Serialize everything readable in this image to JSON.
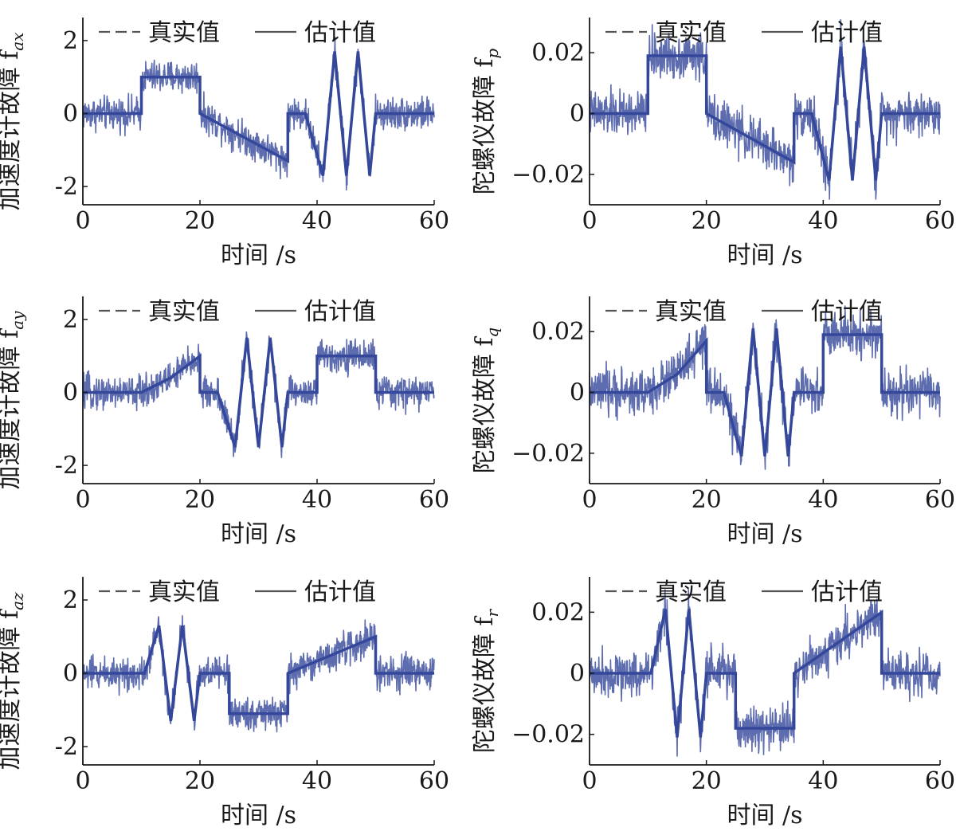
{
  "figure": {
    "background": "#ffffff",
    "axis_color": "#1a1a1a"
  },
  "chart_data": [
    {
      "id": "fax",
      "type": "line",
      "xlabel": "时间 /s",
      "ylabel": "加速度计故障 f",
      "ylabel_sub": "ax",
      "xlim": [
        0,
        60
      ],
      "ylim": [
        -2.5,
        2.5
      ],
      "xticks": [
        "0",
        "20",
        "40",
        "60"
      ],
      "yticks": [
        "-2",
        "0",
        "2"
      ],
      "noise_amplitude": 0.3,
      "series": [
        {
          "name": "真实值",
          "style": "dashed",
          "color": "#e8384f",
          "x": [
            0,
            10,
            10,
            20,
            20,
            35,
            35,
            38,
            41,
            43,
            45,
            47,
            49,
            50,
            50,
            60
          ],
          "y": [
            0,
            0,
            1,
            1,
            0,
            -1.3,
            0,
            0,
            -1.7,
            1.7,
            -1.7,
            1.7,
            -1.7,
            0,
            0,
            0
          ]
        },
        {
          "name": "估计值",
          "style": "solid",
          "color": "#34479a",
          "x": [
            0,
            10,
            10,
            20,
            20,
            35,
            35,
            38,
            41,
            43,
            45,
            47,
            49,
            50,
            50,
            60
          ],
          "y": [
            0,
            0,
            1,
            1,
            0,
            -1.3,
            0,
            0,
            -1.7,
            1.7,
            -1.7,
            1.7,
            -1.7,
            0,
            0,
            0
          ]
        }
      ]
    },
    {
      "id": "fp",
      "type": "line",
      "xlabel": "时间 /s",
      "ylabel": "陀螺仪故障 f",
      "ylabel_sub": "p",
      "xlim": [
        0,
        60
      ],
      "ylim": [
        -0.03,
        0.03
      ],
      "xticks": [
        "0",
        "20",
        "40",
        "60"
      ],
      "yticks": [
        "−0.02",
        "0",
        "0.02"
      ],
      "noise_amplitude": 0.005,
      "series": [
        {
          "name": "真实值",
          "style": "dashed",
          "color": "#e8384f",
          "x": [
            0,
            10,
            10,
            20,
            20,
            35,
            35,
            38,
            41,
            43,
            45,
            47,
            49,
            50,
            50,
            60
          ],
          "y": [
            0,
            0,
            0.019,
            0.019,
            0,
            -0.016,
            0,
            0,
            -0.022,
            0.022,
            -0.022,
            0.022,
            -0.022,
            0,
            0,
            0
          ]
        },
        {
          "name": "估计值",
          "style": "solid",
          "color": "#34479a",
          "x": [
            0,
            10,
            10,
            20,
            20,
            35,
            35,
            38,
            41,
            43,
            45,
            47,
            49,
            50,
            50,
            60
          ],
          "y": [
            0,
            0,
            0.019,
            0.019,
            0,
            -0.016,
            0,
            0,
            -0.022,
            0.022,
            -0.022,
            0.022,
            -0.022,
            0,
            0,
            0
          ]
        }
      ]
    },
    {
      "id": "fay",
      "type": "line",
      "xlabel": "时间 /s",
      "ylabel": "加速度计故障 f",
      "ylabel_sub": "ay",
      "xlim": [
        0,
        60
      ],
      "ylim": [
        -2.5,
        2.5
      ],
      "xticks": [
        "0",
        "20",
        "40",
        "60"
      ],
      "yticks": [
        "-2",
        "0",
        "2"
      ],
      "noise_amplitude": 0.3,
      "series": [
        {
          "name": "真实值",
          "style": "dashed",
          "color": "#e8384f",
          "x": [
            0,
            10,
            15,
            20,
            20,
            23,
            26,
            28,
            30,
            32,
            34,
            35,
            35,
            40,
            40,
            50,
            50,
            60
          ],
          "y": [
            0,
            0,
            0.4,
            1.0,
            0,
            0,
            -1.5,
            1.5,
            -1.5,
            1.5,
            -1.5,
            0,
            0,
            0,
            1.0,
            1.0,
            0,
            0
          ]
        },
        {
          "name": "估计值",
          "style": "solid",
          "color": "#34479a",
          "x": [
            0,
            10,
            15,
            20,
            20,
            23,
            26,
            28,
            30,
            32,
            34,
            35,
            35,
            40,
            40,
            50,
            50,
            60
          ],
          "y": [
            0,
            0,
            0.4,
            1.0,
            0,
            0,
            -1.5,
            1.5,
            -1.5,
            1.5,
            -1.5,
            0,
            0,
            0,
            1.0,
            1.0,
            0,
            0
          ]
        }
      ]
    },
    {
      "id": "fq",
      "type": "line",
      "xlabel": "时间 /s",
      "ylabel": "陀螺仪故障 f",
      "ylabel_sub": "q",
      "xlim": [
        0,
        60
      ],
      "ylim": [
        -0.03,
        0.03
      ],
      "xticks": [
        "0",
        "20",
        "40",
        "60"
      ],
      "yticks": [
        "−0.02",
        "0",
        "0.02"
      ],
      "noise_amplitude": 0.005,
      "series": [
        {
          "name": "真实值",
          "style": "dashed",
          "color": "#e8384f",
          "x": [
            0,
            10,
            15,
            20,
            20,
            23,
            26,
            28,
            30,
            32,
            34,
            35,
            35,
            40,
            40,
            50,
            50,
            60
          ],
          "y": [
            0,
            0,
            0.006,
            0.017,
            0,
            0,
            -0.021,
            0.021,
            -0.021,
            0.021,
            -0.021,
            0,
            0,
            0,
            0.019,
            0.019,
            0,
            0
          ]
        },
        {
          "name": "估计值",
          "style": "solid",
          "color": "#34479a",
          "x": [
            0,
            10,
            15,
            20,
            20,
            23,
            26,
            28,
            30,
            32,
            34,
            35,
            35,
            40,
            40,
            50,
            50,
            60
          ],
          "y": [
            0,
            0,
            0.006,
            0.017,
            0,
            0,
            -0.021,
            0.021,
            -0.021,
            0.021,
            -0.021,
            0,
            0,
            0,
            0.019,
            0.019,
            0,
            0
          ]
        }
      ]
    },
    {
      "id": "faz",
      "type": "line",
      "xlabel": "时间 /s",
      "ylabel": "加速度计故障 f",
      "ylabel_sub": "az",
      "xlim": [
        0,
        60
      ],
      "ylim": [
        -2.5,
        2.5
      ],
      "xticks": [
        "0",
        "20",
        "40",
        "60"
      ],
      "yticks": [
        "-2",
        "0",
        "2"
      ],
      "noise_amplitude": 0.3,
      "series": [
        {
          "name": "真实值",
          "style": "dashed",
          "color": "#e8384f",
          "x": [
            0,
            10,
            10.5,
            13,
            15,
            17,
            19,
            20,
            25,
            25,
            35,
            35,
            50,
            50,
            60
          ],
          "y": [
            0,
            0,
            0,
            1.3,
            -1.3,
            1.3,
            -1.3,
            0,
            0,
            -1.1,
            -1.1,
            0,
            1.0,
            0,
            0
          ]
        },
        {
          "name": "估计值",
          "style": "solid",
          "color": "#34479a",
          "x": [
            0,
            10,
            10.5,
            13,
            15,
            17,
            19,
            20,
            25,
            25,
            35,
            35,
            50,
            50,
            60
          ],
          "y": [
            0,
            0,
            0,
            1.3,
            -1.3,
            1.3,
            -1.3,
            0,
            0,
            -1.1,
            -1.1,
            0,
            1.0,
            0,
            0
          ]
        }
      ]
    },
    {
      "id": "fr",
      "type": "line",
      "xlabel": "时间 /s",
      "ylabel": "陀螺仪故障 f",
      "ylabel_sub": "r",
      "xlim": [
        0,
        60
      ],
      "ylim": [
        -0.03,
        0.03
      ],
      "xticks": [
        "0",
        "20",
        "40",
        "60"
      ],
      "yticks": [
        "−0.02",
        "0",
        "0.02"
      ],
      "noise_amplitude": 0.005,
      "series": [
        {
          "name": "真实值",
          "style": "dashed",
          "color": "#e8384f",
          "x": [
            0,
            10,
            10.5,
            13,
            15,
            17,
            19,
            20,
            25,
            25,
            35,
            35,
            50,
            50,
            60
          ],
          "y": [
            0,
            0,
            0,
            0.021,
            -0.021,
            0.021,
            -0.021,
            0,
            0,
            -0.018,
            -0.018,
            0,
            0.02,
            0,
            0
          ]
        },
        {
          "name": "估计值",
          "style": "solid",
          "color": "#34479a",
          "x": [
            0,
            10,
            10.5,
            13,
            15,
            17,
            19,
            20,
            25,
            25,
            35,
            35,
            50,
            50,
            60
          ],
          "y": [
            0,
            0,
            0,
            0.021,
            -0.021,
            0.021,
            -0.021,
            0,
            0,
            -0.018,
            -0.018,
            0,
            0.02,
            0,
            0
          ]
        }
      ]
    }
  ]
}
